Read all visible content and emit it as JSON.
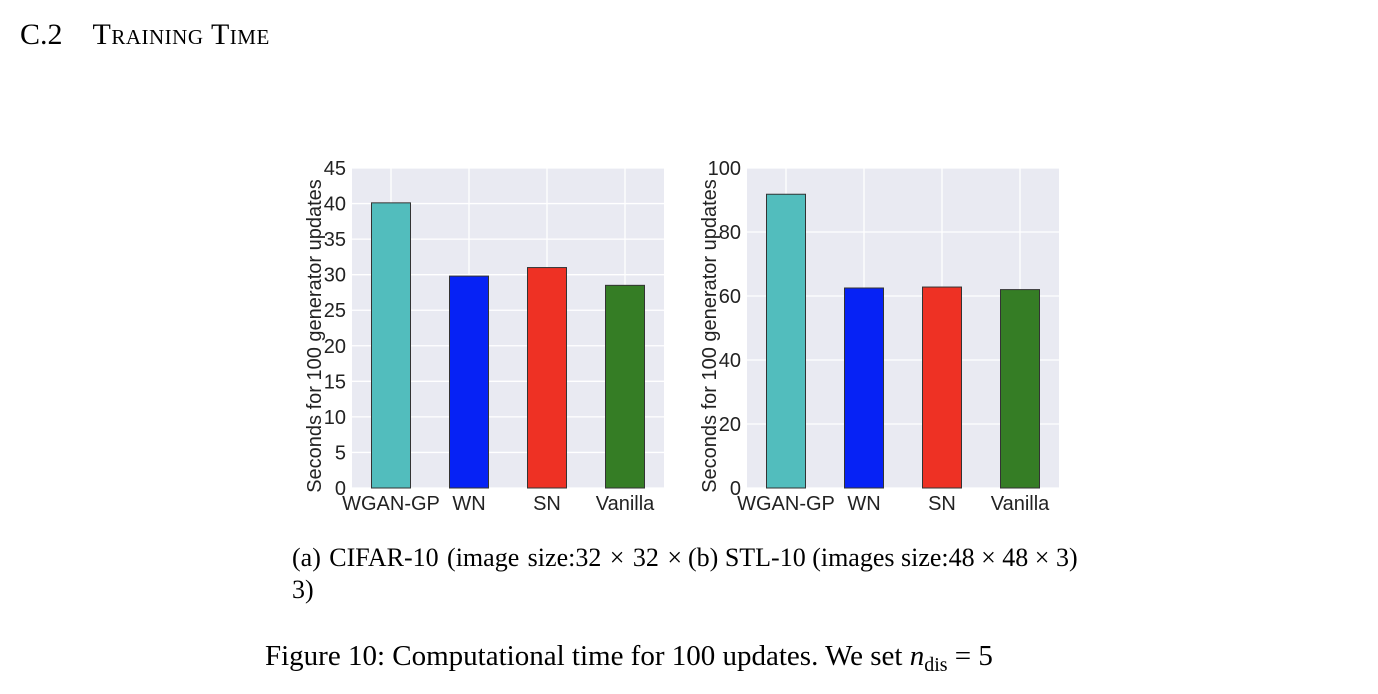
{
  "section": {
    "number": "C.2",
    "title": "Training Time"
  },
  "chart_data": [
    {
      "type": "bar",
      "categories": [
        "WGAN-GP",
        "WN",
        "SN",
        "Vanilla"
      ],
      "values": [
        40.1,
        29.8,
        31.0,
        28.5
      ],
      "colors": [
        "#52bdbd",
        "#0622f5",
        "#ee3124",
        "#357d25"
      ],
      "ylabel": "Seconds for 100 generator updates",
      "ylim": [
        0,
        45
      ],
      "yticks": [
        "0",
        "5",
        "10",
        "15",
        "20",
        "25",
        "30",
        "35",
        "40",
        "45"
      ],
      "grid": true,
      "plot_background": "#e9eaf2"
    },
    {
      "type": "bar",
      "categories": [
        "WGAN-GP",
        "WN",
        "SN",
        "Vanilla"
      ],
      "values": [
        91.8,
        62.5,
        62.8,
        62.0
      ],
      "colors": [
        "#52bdbd",
        "#0622f5",
        "#ee3124",
        "#357d25"
      ],
      "ylabel": "Seconds for 100 generator updates",
      "ylim": [
        0,
        100
      ],
      "yticks": [
        "0",
        "20",
        "40",
        "60",
        "80",
        "100"
      ],
      "grid": true,
      "plot_background": "#e9eaf2"
    }
  ],
  "subcaptions": [
    "(a) CIFAR-10 (image size:32 × 32 × 3)",
    "(b) STL-10 (images size:48 × 48 × 3)"
  ],
  "figure_caption": {
    "text": "Figure 10: Computational time for 100 updates. We set ",
    "math_var": "n",
    "math_sub": "dis",
    "math_rest": " = 5"
  }
}
